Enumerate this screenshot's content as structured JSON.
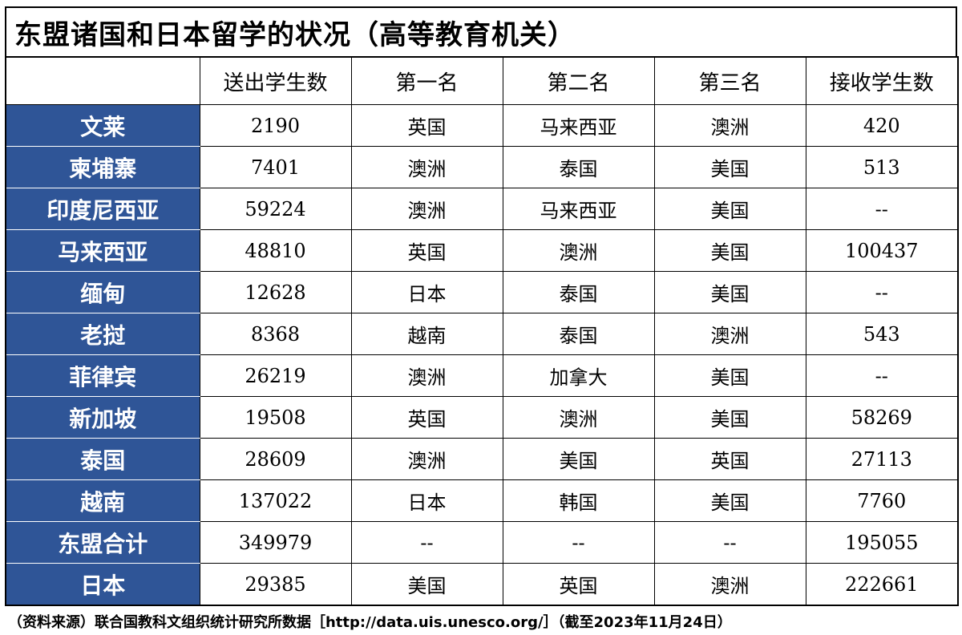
{
  "title": "东盟诸国和日本留学的状况（高等教育机关）",
  "columns": [
    "",
    "送出学生数",
    "第一名",
    "第二名",
    "第三名",
    "接收学生数"
  ],
  "rows": [
    {
      "country": "文莱",
      "sent": "2190",
      "first": "英国",
      "second": "马来西亚",
      "third": "澳洲",
      "received": "420"
    },
    {
      "country": "柬埔寨",
      "sent": "7401",
      "first": "澳洲",
      "second": "泰国",
      "third": "美国",
      "received": "513"
    },
    {
      "country": "印度尼西亚",
      "sent": "59224",
      "first": "澳洲",
      "second": "马来西亚",
      "third": "美国",
      "received": "--"
    },
    {
      "country": "马来西亚",
      "sent": "48810",
      "first": "英国",
      "second": "澳洲",
      "third": "美国",
      "received": "100437"
    },
    {
      "country": "缅甸",
      "sent": "12628",
      "first": "日本",
      "second": "泰国",
      "third": "美国",
      "received": "--"
    },
    {
      "country": "老挝",
      "sent": "8368",
      "first": "越南",
      "second": "泰国",
      "third": "澳洲",
      "received": "543"
    },
    {
      "country": "菲律宾",
      "sent": "26219",
      "first": "澳洲",
      "second": "加拿大",
      "third": "美国",
      "received": "--"
    },
    {
      "country": "新加坡",
      "sent": "19508",
      "first": "英国",
      "second": "澳洲",
      "third": "美国",
      "received": "58269"
    },
    {
      "country": "泰国",
      "sent": "28609",
      "first": "澳洲",
      "second": "美国",
      "third": "英国",
      "received": "27113"
    },
    {
      "country": "越南",
      "sent": "137022",
      "first": "日本",
      "second": "韩国",
      "third": "美国",
      "received": "7760"
    },
    {
      "country": "东盟合计",
      "sent": "349979",
      "first": "--",
      "second": "--",
      "third": "--",
      "received": "195055"
    },
    {
      "country": "日本",
      "sent": "29385",
      "first": "美国",
      "second": "英国",
      "third": "澳洲",
      "received": "222661"
    }
  ],
  "footer": "（资料来源）联合国教科文组织统计研究所数据［http://data.uis.unesco.org/］（截至2023年11月24日）",
  "colors": {
    "header_fill": "#2f5597",
    "header_text": "#ffffff",
    "border": "#000000"
  }
}
